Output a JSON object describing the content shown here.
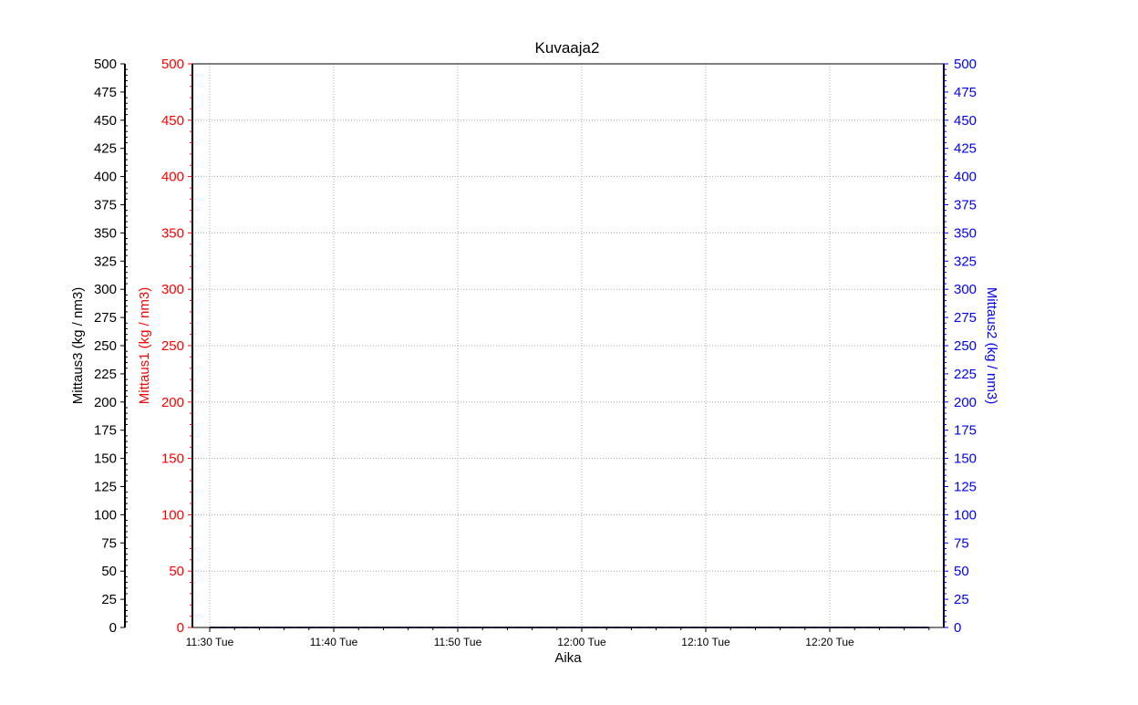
{
  "chart_data": {
    "type": "line",
    "title": "Kuvaaja2",
    "xlabel": "Aika",
    "x_tick_labels": [
      "11:30 Tue",
      "11:40 Tue",
      "11:50 Tue",
      "12:00 Tue",
      "12:10 Tue",
      "12:20 Tue"
    ],
    "grid": true,
    "y_axes": [
      {
        "id": "left-outer",
        "label": "Mittaus3    (kg / nm3)",
        "color": "#000000",
        "ylim": [
          0,
          500
        ],
        "ticks": [
          0,
          25,
          50,
          75,
          100,
          125,
          150,
          175,
          200,
          225,
          250,
          275,
          300,
          325,
          350,
          375,
          400,
          425,
          450,
          475,
          500
        ]
      },
      {
        "id": "left-inner",
        "label": "Mittaus1    (kg / nm3)",
        "color": "#ff0000",
        "ylim": [
          0,
          500
        ],
        "ticks": [
          0,
          50,
          100,
          150,
          200,
          250,
          300,
          350,
          400,
          450,
          500
        ]
      },
      {
        "id": "right",
        "label": "Mittaus2    (kg / nm3)",
        "color": "#0000ff",
        "ylim": [
          0,
          500
        ],
        "ticks": [
          0,
          25,
          50,
          75,
          100,
          125,
          150,
          175,
          200,
          225,
          250,
          275,
          300,
          325,
          350,
          375,
          400,
          425,
          450,
          475,
          500
        ]
      }
    ],
    "series": [
      {
        "name": "Mittaus1",
        "color": "#ff0000",
        "x": [
          "11:30 Tue",
          "12:28 Tue"
        ],
        "values": [
          0,
          0
        ]
      },
      {
        "name": "Mittaus2",
        "color": "#0000ff",
        "x": [
          "11:30 Tue",
          "12:28 Tue"
        ],
        "values": [
          0,
          0
        ]
      },
      {
        "name": "Mittaus3",
        "color": "#000000",
        "x": [
          "11:30 Tue",
          "12:28 Tue"
        ],
        "values": [
          0,
          0
        ]
      }
    ]
  }
}
